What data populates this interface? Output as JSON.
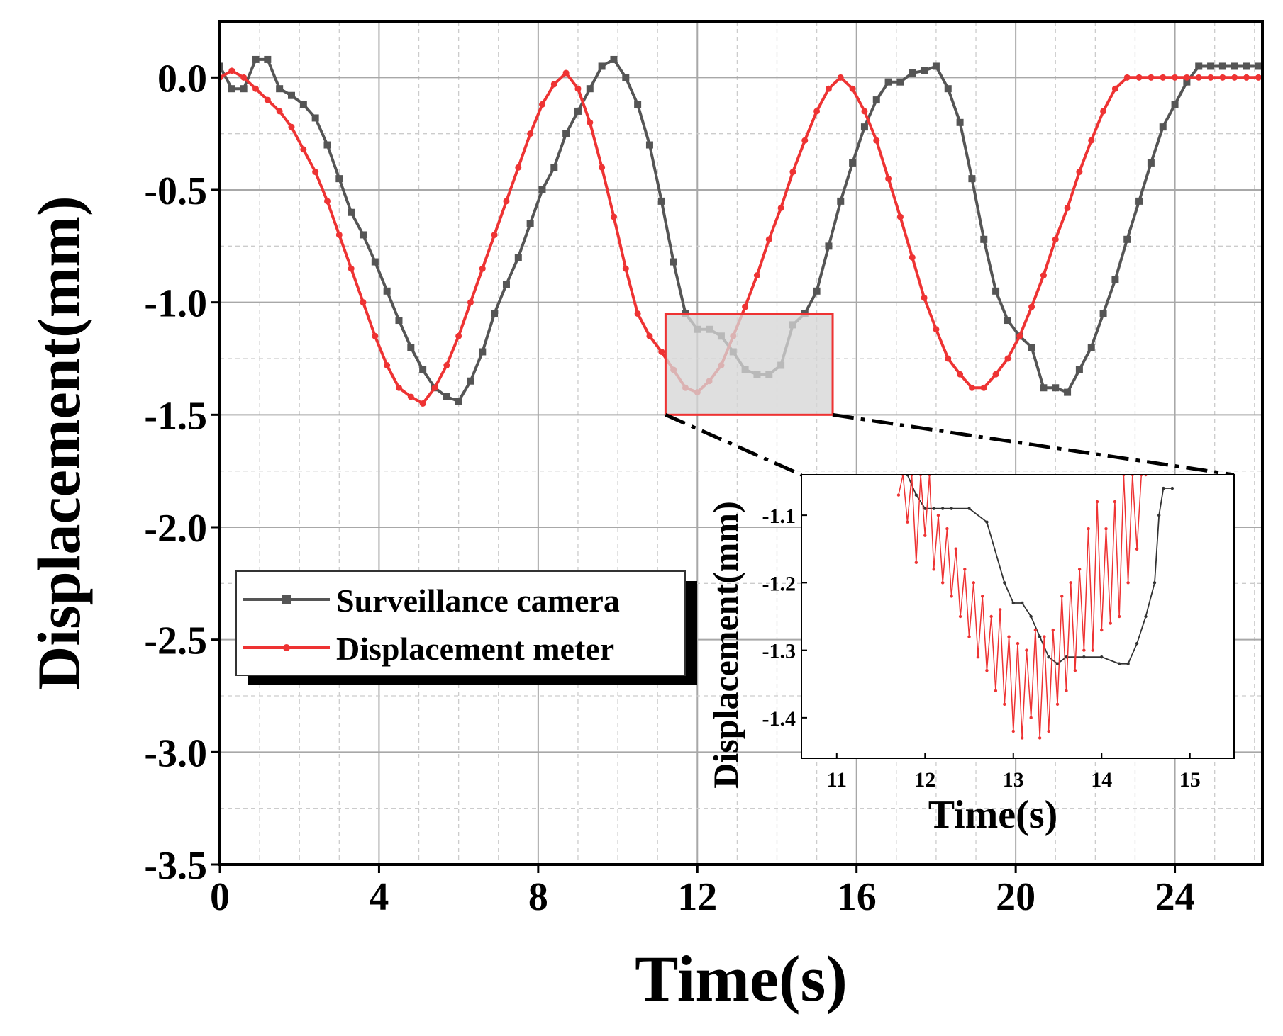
{
  "chart_data": [
    {
      "id": "main",
      "type": "line",
      "title": "",
      "xlabel": "Time(s)",
      "ylabel": "Displacement(mm)",
      "xlim": [
        0,
        26.2
      ],
      "ylim": [
        -3.5,
        0.25
      ],
      "xticks": [
        0,
        4,
        8,
        12,
        16,
        20,
        24
      ],
      "xtick_labels": [
        "0",
        "4",
        "8",
        "12",
        "16",
        "20",
        "24"
      ],
      "yticks": [
        0.0,
        -0.5,
        -1.0,
        -1.5,
        -2.0,
        -2.5,
        -3.0,
        -3.5
      ],
      "ytick_labels": [
        "0.0",
        "-0.5",
        "-1.0",
        "-1.5",
        "-2.0",
        "-2.5",
        "-3.0",
        "-3.5"
      ],
      "grid": true,
      "legend_position": "middle-left",
      "series": [
        {
          "name": "Surveillance camera",
          "color": "#555555",
          "marker": "square",
          "x": [
            0,
            0.3,
            0.6,
            0.9,
            1.2,
            1.5,
            1.8,
            2.1,
            2.4,
            2.7,
            3.0,
            3.3,
            3.6,
            3.9,
            4.2,
            4.5,
            4.8,
            5.1,
            5.4,
            5.7,
            6.0,
            6.3,
            6.6,
            6.9,
            7.2,
            7.5,
            7.8,
            8.1,
            8.4,
            8.7,
            9.0,
            9.3,
            9.6,
            9.9,
            10.2,
            10.5,
            10.8,
            11.1,
            11.4,
            11.7,
            12.0,
            12.3,
            12.6,
            12.9,
            13.2,
            13.5,
            13.8,
            14.1,
            14.4,
            14.7,
            15.0,
            15.3,
            15.6,
            15.9,
            16.2,
            16.5,
            16.8,
            17.1,
            17.4,
            17.7,
            18.0,
            18.3,
            18.6,
            18.9,
            19.2,
            19.5,
            19.8,
            20.1,
            20.4,
            20.7,
            21.0,
            21.3,
            21.6,
            21.9,
            22.2,
            22.5,
            22.8,
            23.1,
            23.4,
            23.7,
            24.0,
            24.3,
            24.6,
            24.9,
            25.2,
            25.5,
            25.8,
            26.1
          ],
          "y": [
            0.05,
            -0.05,
            -0.05,
            0.08,
            0.08,
            -0.05,
            -0.08,
            -0.12,
            -0.18,
            -0.3,
            -0.45,
            -0.6,
            -0.7,
            -0.82,
            -0.95,
            -1.08,
            -1.2,
            -1.3,
            -1.38,
            -1.42,
            -1.44,
            -1.35,
            -1.22,
            -1.05,
            -0.92,
            -0.8,
            -0.65,
            -0.5,
            -0.4,
            -0.25,
            -0.15,
            -0.05,
            0.05,
            0.08,
            0.0,
            -0.12,
            -0.3,
            -0.55,
            -0.82,
            -1.05,
            -1.12,
            -1.12,
            -1.15,
            -1.22,
            -1.3,
            -1.32,
            -1.32,
            -1.28,
            -1.1,
            -1.05,
            -0.95,
            -0.75,
            -0.55,
            -0.38,
            -0.22,
            -0.1,
            -0.02,
            -0.02,
            0.02,
            0.03,
            0.05,
            -0.05,
            -0.2,
            -0.45,
            -0.72,
            -0.95,
            -1.08,
            -1.15,
            -1.2,
            -1.38,
            -1.38,
            -1.4,
            -1.3,
            -1.2,
            -1.05,
            -0.9,
            -0.72,
            -0.55,
            -0.38,
            -0.22,
            -0.12,
            -0.02,
            0.05,
            0.05,
            0.05,
            0.05,
            0.05,
            0.05
          ]
        },
        {
          "name": "Displacement meter",
          "color": "#ee3333",
          "marker": "circle",
          "x": [
            0,
            0.3,
            0.6,
            0.9,
            1.2,
            1.5,
            1.8,
            2.1,
            2.4,
            2.7,
            3.0,
            3.3,
            3.6,
            3.9,
            4.2,
            4.5,
            4.8,
            5.1,
            5.4,
            5.7,
            6.0,
            6.3,
            6.6,
            6.9,
            7.2,
            7.5,
            7.8,
            8.1,
            8.4,
            8.7,
            9.0,
            9.3,
            9.6,
            9.9,
            10.2,
            10.5,
            10.8,
            11.1,
            11.4,
            11.7,
            12.0,
            12.3,
            12.6,
            12.9,
            13.2,
            13.5,
            13.8,
            14.1,
            14.4,
            14.7,
            15.0,
            15.3,
            15.6,
            15.9,
            16.2,
            16.5,
            16.8,
            17.1,
            17.4,
            17.7,
            18.0,
            18.3,
            18.6,
            18.9,
            19.2,
            19.5,
            19.8,
            20.1,
            20.4,
            20.7,
            21.0,
            21.3,
            21.6,
            21.9,
            22.2,
            22.5,
            22.8,
            23.1,
            23.4,
            23.7,
            24.0,
            24.3,
            24.6,
            24.9,
            25.2,
            25.5,
            25.8,
            26.1
          ],
          "y": [
            0.0,
            0.03,
            0.0,
            -0.05,
            -0.1,
            -0.15,
            -0.22,
            -0.32,
            -0.42,
            -0.55,
            -0.7,
            -0.85,
            -1.0,
            -1.15,
            -1.28,
            -1.38,
            -1.42,
            -1.45,
            -1.38,
            -1.28,
            -1.15,
            -1.0,
            -0.85,
            -0.7,
            -0.55,
            -0.4,
            -0.25,
            -0.12,
            -0.03,
            0.02,
            -0.05,
            -0.2,
            -0.4,
            -0.62,
            -0.85,
            -1.05,
            -1.15,
            -1.22,
            -1.3,
            -1.38,
            -1.4,
            -1.35,
            -1.28,
            -1.15,
            -1.02,
            -0.88,
            -0.72,
            -0.58,
            -0.42,
            -0.28,
            -0.15,
            -0.05,
            0.0,
            -0.05,
            -0.15,
            -0.28,
            -0.45,
            -0.62,
            -0.8,
            -0.98,
            -1.12,
            -1.25,
            -1.32,
            -1.38,
            -1.38,
            -1.32,
            -1.25,
            -1.15,
            -1.02,
            -0.88,
            -0.72,
            -0.58,
            -0.42,
            -0.28,
            -0.15,
            -0.05,
            0.0,
            0.0,
            0.0,
            0.0,
            0.0,
            0.0,
            0.0,
            0.0,
            0.0,
            0.0,
            0.0,
            0.0
          ]
        }
      ]
    },
    {
      "id": "inset",
      "type": "line",
      "title": "",
      "xlabel": "Time(s)",
      "ylabel": "Displacement(mm)",
      "xlim": [
        10.6,
        15.5
      ],
      "ylim": [
        -1.46,
        -1.04
      ],
      "xticks": [
        11,
        12,
        13,
        14,
        15
      ],
      "xtick_labels": [
        "11",
        "12",
        "13",
        "14",
        "15"
      ],
      "yticks": [
        -1.1,
        -1.2,
        -1.3,
        -1.4
      ],
      "ytick_labels": [
        "-1.1",
        "-1.2",
        "-1.3",
        "-1.4"
      ],
      "grid": false,
      "zoom_region": {
        "x": [
          11.2,
          15.4
        ],
        "y": [
          -1.5,
          -1.05
        ]
      },
      "series": [
        {
          "name": "Surveillance camera",
          "color": "#333333",
          "x": [
            11.8,
            11.9,
            12.0,
            12.1,
            12.2,
            12.3,
            12.5,
            12.7,
            12.9,
            13.0,
            13.1,
            13.2,
            13.3,
            13.4,
            13.5,
            13.6,
            13.8,
            14.0,
            14.2,
            14.3,
            14.4,
            14.5,
            14.6,
            14.65,
            14.7,
            14.8
          ],
          "y": [
            -1.04,
            -1.07,
            -1.09,
            -1.09,
            -1.09,
            -1.09,
            -1.09,
            -1.11,
            -1.2,
            -1.23,
            -1.23,
            -1.25,
            -1.28,
            -1.31,
            -1.32,
            -1.31,
            -1.31,
            -1.31,
            -1.32,
            -1.32,
            -1.29,
            -1.25,
            -1.2,
            -1.1,
            -1.06,
            -1.06
          ]
        },
        {
          "name": "Displacement meter",
          "color": "#ee3333",
          "x": [
            11.7,
            11.75,
            11.8,
            11.85,
            11.9,
            11.95,
            12.0,
            12.05,
            12.1,
            12.15,
            12.2,
            12.25,
            12.3,
            12.35,
            12.4,
            12.45,
            12.5,
            12.55,
            12.6,
            12.65,
            12.7,
            12.75,
            12.8,
            12.85,
            12.9,
            12.95,
            13.0,
            13.05,
            13.1,
            13.15,
            13.2,
            13.25,
            13.3,
            13.35,
            13.4,
            13.45,
            13.5,
            13.55,
            13.6,
            13.65,
            13.7,
            13.75,
            13.8,
            13.85,
            13.9,
            13.95,
            14.0,
            14.05,
            14.1,
            14.15,
            14.2,
            14.25,
            14.3,
            14.35,
            14.4,
            14.45,
            14.5
          ],
          "y": [
            -1.07,
            -1.04,
            -1.11,
            -1.04,
            -1.17,
            -1.04,
            -1.13,
            -1.04,
            -1.18,
            -1.1,
            -1.2,
            -1.12,
            -1.22,
            -1.15,
            -1.25,
            -1.18,
            -1.28,
            -1.2,
            -1.31,
            -1.22,
            -1.33,
            -1.25,
            -1.36,
            -1.24,
            -1.38,
            -1.28,
            -1.42,
            -1.29,
            -1.43,
            -1.3,
            -1.4,
            -1.27,
            -1.43,
            -1.28,
            -1.42,
            -1.27,
            -1.38,
            -1.22,
            -1.36,
            -1.2,
            -1.33,
            -1.18,
            -1.3,
            -1.12,
            -1.3,
            -1.08,
            -1.27,
            -1.12,
            -1.26,
            -1.08,
            -1.25,
            -1.04,
            -1.2,
            -1.04,
            -1.15,
            -1.04,
            -1.04
          ]
        }
      ]
    }
  ],
  "legend": {
    "items": [
      {
        "label": "Surveillance camera",
        "color": "#555555",
        "marker": "square"
      },
      {
        "label": "Displacement meter",
        "color": "#ee3333",
        "marker": "circle"
      }
    ]
  }
}
